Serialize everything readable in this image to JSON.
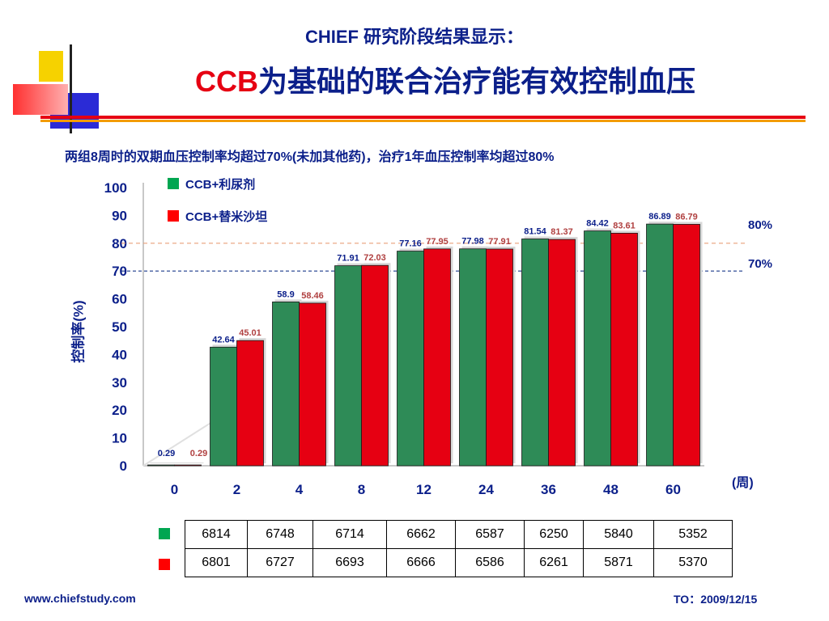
{
  "header": {
    "title_line1": "CHIEF 研究阶段结果显示：",
    "title_line2_red": "CCB",
    "title_line2_rest": "为基础的联合治疗能有效控制血压"
  },
  "subtitle": "两组8周时的双期血压控制率均超过70%(未加其他药)，治疗1年血压控制率均超过80%",
  "chart_data": {
    "type": "bar",
    "title": "",
    "xlabel": "(周)",
    "ylabel": "控制率(%)",
    "ylim": [
      0,
      100
    ],
    "yticks": [
      "0",
      "10",
      "20",
      "30",
      "40",
      "50",
      "60",
      "70",
      "80",
      "90",
      "100"
    ],
    "categories": [
      "0",
      "2",
      "4",
      "8",
      "12",
      "24",
      "36",
      "48",
      "60"
    ],
    "legend_position": "top-left",
    "grid": false,
    "series": [
      {
        "name": "CCB+利尿剂",
        "color": "#2e8b57",
        "values": [
          0.29,
          42.64,
          58.9,
          71.91,
          77.16,
          77.98,
          81.54,
          84.42,
          86.89
        ],
        "labels": [
          "0.29",
          "42.64",
          "58.9",
          "71.91",
          "77.16",
          "77.98",
          "81.54",
          "84.42",
          "86.89"
        ]
      },
      {
        "name": "CCB+替米沙坦",
        "color": "#e60012",
        "values": [
          0.29,
          45.01,
          58.46,
          72.03,
          77.95,
          77.91,
          81.37,
          83.61,
          86.79
        ],
        "labels": [
          "0.29",
          "45.01",
          "58.46",
          "72.03",
          "77.95",
          "77.91",
          "81.37",
          "83.61",
          "86.79"
        ]
      }
    ],
    "reference_lines": [
      {
        "value": 80,
        "label": "80%",
        "color": "#e8a07a"
      },
      {
        "value": 70,
        "label": "70%",
        "color": "#1a3a8a"
      }
    ]
  },
  "legend": {
    "item1": "CCB+利尿剂",
    "item2": "CCB+替米沙坦",
    "color1": "#00a651",
    "color2": "#ff0000"
  },
  "sample_table": {
    "rows": [
      {
        "marker_color": "#00a651",
        "cells": [
          "6814",
          "6748",
          "6714",
          "6662",
          "6587",
          "6250",
          "5840",
          "5352"
        ]
      },
      {
        "marker_color": "#ff0000",
        "cells": [
          "6801",
          "6727",
          "6693",
          "6666",
          "6586",
          "6261",
          "5871",
          "5370"
        ]
      }
    ]
  },
  "footer": {
    "website": "www.chiefstudy.com",
    "date": "TO：2009/12/15"
  }
}
